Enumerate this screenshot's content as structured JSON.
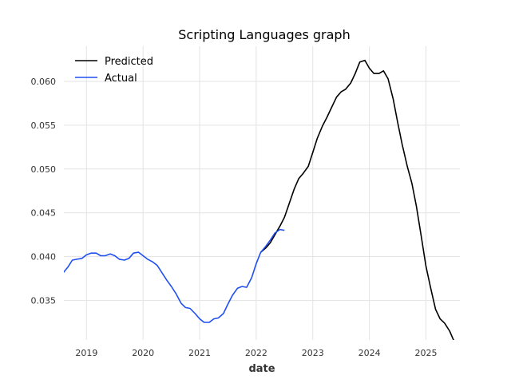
{
  "chart_data": {
    "type": "line",
    "title": "Scripting Languages graph",
    "xlabel": "date",
    "ylabel": "",
    "xlim": [
      2018.6,
      2025.6
    ],
    "ylim": [
      0.0305,
      0.064
    ],
    "x_ticks": [
      2019,
      2020,
      2021,
      2022,
      2023,
      2024,
      2025
    ],
    "x_tick_labels": [
      "2019",
      "2020",
      "2021",
      "2022",
      "2023",
      "2024",
      "2025"
    ],
    "y_ticks": [
      0.035,
      0.04,
      0.045,
      0.05,
      0.055,
      0.06
    ],
    "y_tick_labels": [
      "0.035",
      "0.040",
      "0.045",
      "0.050",
      "0.055",
      "0.060"
    ],
    "grid": true,
    "legend": "top-left",
    "series": [
      {
        "name": "Predicted",
        "color": "#000000",
        "x": [
          2022.08,
          2022.17,
          2022.25,
          2022.33,
          2022.42,
          2022.5,
          2022.58,
          2022.67,
          2022.75,
          2022.83,
          2022.92,
          2023.0,
          2023.08,
          2023.17,
          2023.25,
          2023.33,
          2023.42,
          2023.5,
          2023.58,
          2023.67,
          2023.75,
          2023.83,
          2023.92,
          2024.0,
          2024.08,
          2024.17,
          2024.25,
          2024.33,
          2024.42,
          2024.5,
          2024.58,
          2024.67,
          2024.75,
          2024.83,
          2024.92,
          2025.0,
          2025.08,
          2025.17,
          2025.25,
          2025.33,
          2025.42,
          2025.5,
          2025.58
        ],
        "values": [
          0.0405,
          0.041,
          0.0416,
          0.0425,
          0.0435,
          0.0445,
          0.046,
          0.0477,
          0.0489,
          0.0495,
          0.0503,
          0.0519,
          0.0535,
          0.0549,
          0.0559,
          0.057,
          0.0582,
          0.0588,
          0.0591,
          0.0598,
          0.0609,
          0.0622,
          0.0624,
          0.0615,
          0.0609,
          0.0609,
          0.0612,
          0.0603,
          0.058,
          0.0553,
          0.0528,
          0.0503,
          0.0484,
          0.0458,
          0.0422,
          0.0389,
          0.0365,
          0.034,
          0.0329,
          0.0324,
          0.0315,
          0.0303,
          0.0292
        ]
      },
      {
        "name": "Actual",
        "color": "#1f4ff0",
        "x": [
          2018.58,
          2018.67,
          2018.75,
          2018.83,
          2018.92,
          2019.0,
          2019.08,
          2019.17,
          2019.25,
          2019.33,
          2019.42,
          2019.5,
          2019.58,
          2019.67,
          2019.75,
          2019.83,
          2019.92,
          2020.0,
          2020.08,
          2020.17,
          2020.25,
          2020.33,
          2020.42,
          2020.5,
          2020.58,
          2020.67,
          2020.75,
          2020.83,
          2020.92,
          2021.0,
          2021.08,
          2021.17,
          2021.25,
          2021.33,
          2021.42,
          2021.5,
          2021.58,
          2021.67,
          2021.75,
          2021.83,
          2021.92,
          2022.0,
          2022.08,
          2022.17,
          2022.25,
          2022.33,
          2022.42,
          2022.5
        ],
        "values": [
          0.0381,
          0.0388,
          0.0396,
          0.0397,
          0.0398,
          0.0402,
          0.0404,
          0.0404,
          0.0401,
          0.0401,
          0.0403,
          0.0401,
          0.0397,
          0.0396,
          0.0398,
          0.0404,
          0.0405,
          0.0401,
          0.0397,
          0.0394,
          0.039,
          0.0382,
          0.0373,
          0.0366,
          0.0358,
          0.0347,
          0.0342,
          0.0341,
          0.0335,
          0.0329,
          0.0325,
          0.0325,
          0.0329,
          0.033,
          0.0335,
          0.0346,
          0.0356,
          0.0364,
          0.0366,
          0.0365,
          0.0376,
          0.0392,
          0.0405,
          0.0412,
          0.0419,
          0.0427,
          0.0431,
          0.043
        ]
      }
    ]
  }
}
